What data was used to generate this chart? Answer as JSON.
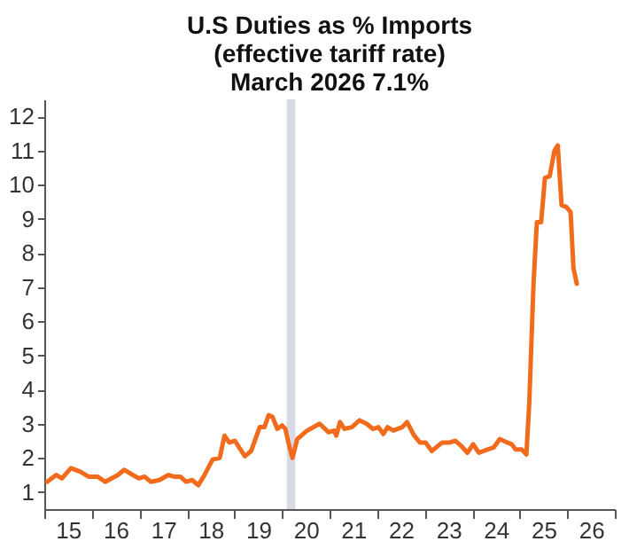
{
  "chart_data": {
    "type": "line",
    "title": "U.S Duties as % Imports\n(effective tariff rate)\nMarch 2026    7.1%",
    "x": [
      14.56,
      14.75,
      14.87,
      15.06,
      15.25,
      15.43,
      15.62,
      15.78,
      16.05,
      16.18,
      16.36,
      16.49,
      16.61,
      16.74,
      16.92,
      17.11,
      17.23,
      17.36,
      17.48,
      17.61,
      17.74,
      17.85,
      18.04,
      18.19,
      18.29,
      18.39,
      18.51,
      18.6,
      18.72,
      18.85,
      19.03,
      19.13,
      19.22,
      19.3,
      19.4,
      19.5,
      19.57,
      19.66,
      19.72,
      19.82,
      20.03,
      20.29,
      20.48,
      20.6,
      20.64,
      20.72,
      20.81,
      20.97,
      21.13,
      21.28,
      21.41,
      21.53,
      21.63,
      21.72,
      21.84,
      22.03,
      22.13,
      22.28,
      22.4,
      22.52,
      22.65,
      22.87,
      23.02,
      23.15,
      23.27,
      23.4,
      23.52,
      23.64,
      23.83,
      23.95,
      24.08,
      24.24,
      24.33,
      24.41,
      24.54,
      24.64,
      24.7,
      24.79,
      24.86,
      24.95,
      25.03,
      25.13,
      25.23,
      25.3,
      25.38,
      25.48,
      25.57,
      25.63,
      25.7
    ],
    "series": [
      {
        "color": "#f26b1d",
        "values": [
          1.3,
          1.5,
          1.4,
          1.7,
          1.6,
          1.45,
          1.45,
          1.3,
          1.5,
          1.65,
          1.5,
          1.4,
          1.45,
          1.3,
          1.35,
          1.5,
          1.45,
          1.45,
          1.3,
          1.35,
          1.2,
          1.45,
          1.95,
          2.0,
          2.65,
          2.45,
          2.5,
          2.3,
          2.05,
          2.2,
          2.9,
          2.9,
          3.25,
          3.2,
          2.85,
          2.95,
          2.85,
          2.3,
          2.0,
          2.55,
          2.8,
          3.0,
          2.75,
          2.8,
          2.65,
          3.05,
          2.85,
          2.9,
          3.1,
          3.0,
          2.85,
          2.9,
          2.7,
          2.9,
          2.8,
          2.9,
          3.05,
          2.65,
          2.45,
          2.45,
          2.2,
          2.45,
          2.45,
          2.5,
          2.35,
          2.15,
          2.4,
          2.15,
          2.25,
          2.3,
          2.55,
          2.45,
          2.4,
          2.25,
          2.25,
          2.1,
          3.6,
          7.1,
          8.9,
          8.9,
          10.2,
          10.25,
          11.0,
          11.15,
          9.4,
          9.35,
          9.2,
          7.55,
          7.1
        ]
      }
    ],
    "xlim": [
      14.5,
      26.5
    ],
    "xticks": [
      {
        "value": 14.5,
        "label": null
      },
      15,
      {
        "value": 15.5,
        "label": null
      },
      16,
      {
        "value": 16.5,
        "label": null
      },
      17,
      {
        "value": 17.5,
        "label": null
      },
      18,
      {
        "value": 18.5,
        "label": null
      },
      19,
      {
        "value": 19.5,
        "label": null
      },
      20,
      {
        "value": 20.5,
        "label": null
      },
      21,
      {
        "value": 21.5,
        "label": null
      },
      22,
      {
        "value": 22.5,
        "label": null
      },
      23,
      {
        "value": 23.5,
        "label": null
      },
      24,
      {
        "value": 24.5,
        "label": null
      },
      25,
      {
        "value": 25.5,
        "label": null
      },
      26,
      {
        "value": 26.5,
        "label": null
      }
    ],
    "ylim": [
      0.5,
      12.5
    ],
    "yticks": [
      1,
      2,
      3,
      4,
      5,
      6,
      7,
      8,
      9,
      10,
      11,
      12
    ],
    "bands": [
      {
        "axis": "x",
        "from": 19.6,
        "to": 19.78,
        "color": "#d8dbe3"
      }
    ],
    "line_style": "solid",
    "grid": false
  }
}
